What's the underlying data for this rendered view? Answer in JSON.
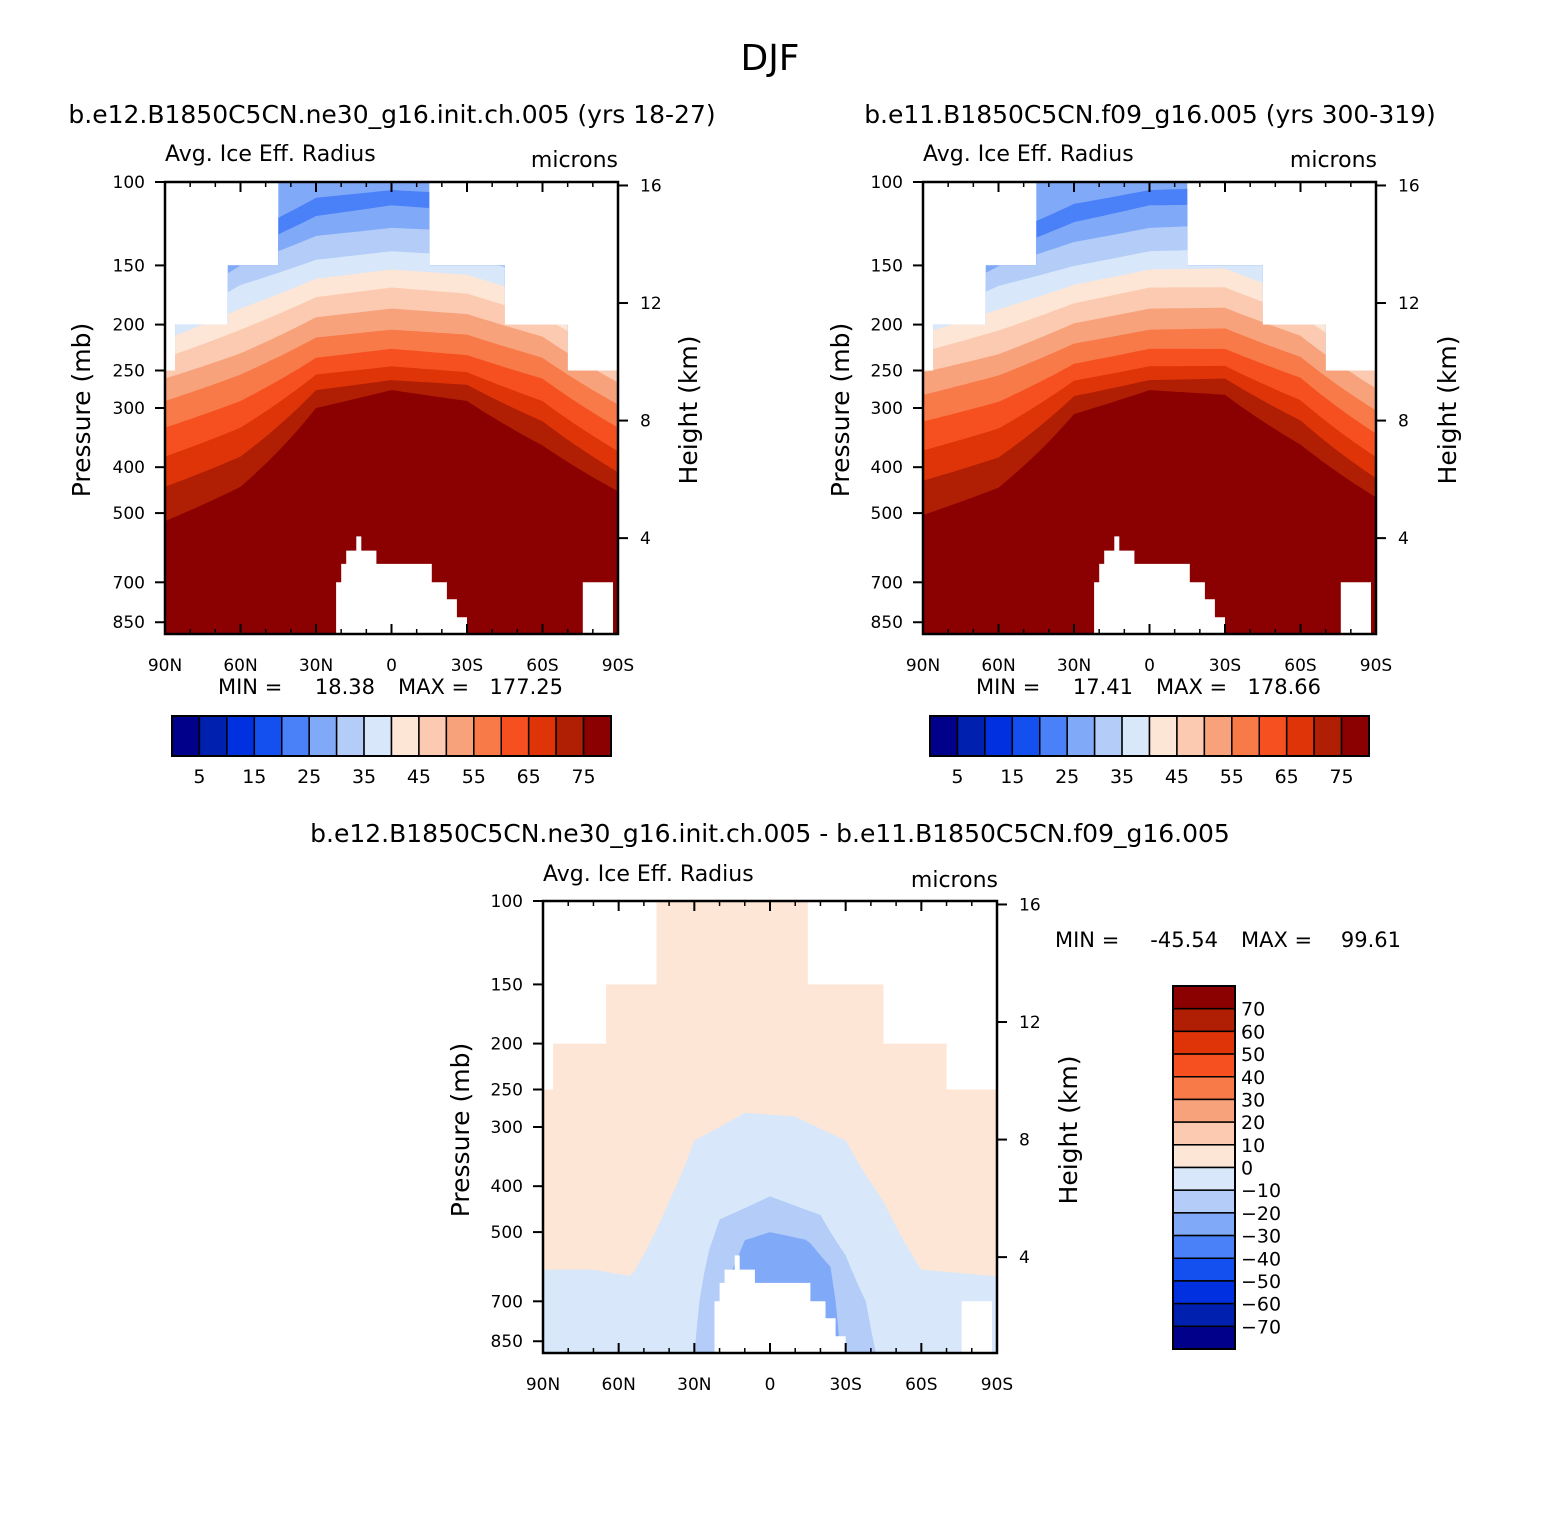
{
  "page": {
    "title": "DJF"
  },
  "colors": {
    "abs_levels": [
      "#00008b",
      "#0020b0",
      "#0030e0",
      "#1450f0",
      "#4a80f8",
      "#80aaf8",
      "#b4ccf8",
      "#d8e8fa",
      "#fde6d6",
      "#fbcab0",
      "#f8a27c",
      "#f77a48",
      "#f75020",
      "#de3408",
      "#b01e04",
      "#8b0000"
    ],
    "diff_levels": [
      "#8b0000",
      "#b01e04",
      "#de3408",
      "#f75020",
      "#f77a48",
      "#f8a27c",
      "#fbcab0",
      "#fde6d6",
      "#d8e8fa",
      "#b4ccf8",
      "#80aaf8",
      "#4a80f8",
      "#1450f0",
      "#0030e0",
      "#0020b0",
      "#00008b"
    ]
  },
  "chart_data": [
    {
      "id": "panel1",
      "type": "heatmap",
      "title": "b.e12.B1850C5CN.ne30_g16.init.ch.005 (yrs 18-27)",
      "variable": "Avg. Ice Eff. Radius",
      "units": "microns",
      "ylabel": "Pressure (mb)",
      "ylabel_right": "Height (km)",
      "x_ticks": [
        "90N",
        "60N",
        "30N",
        "0",
        "30S",
        "60S",
        "90S"
      ],
      "y_ticks": [
        "100",
        "150",
        "200",
        "250",
        "300",
        "400",
        "500",
        "700",
        "850"
      ],
      "y_right_ticks": [
        "16",
        "12",
        "8",
        "4"
      ],
      "stats": {
        "min_label": "MIN =",
        "min": "18.38",
        "max_label": "MAX =",
        "max": "177.25"
      },
      "colorbar_labels": [
        "5",
        "15",
        "25",
        "35",
        "45",
        "55",
        "65",
        "75"
      ],
      "variant": "a"
    },
    {
      "id": "panel2",
      "type": "heatmap",
      "title": "b.e11.B1850C5CN.f09_g16.005 (yrs 300-319)",
      "variable": "Avg. Ice Eff. Radius",
      "units": "microns",
      "ylabel": "Pressure (mb)",
      "ylabel_right": "Height (km)",
      "x_ticks": [
        "90N",
        "60N",
        "30N",
        "0",
        "30S",
        "60S",
        "90S"
      ],
      "y_ticks": [
        "100",
        "150",
        "200",
        "250",
        "300",
        "400",
        "500",
        "700",
        "850"
      ],
      "y_right_ticks": [
        "16",
        "12",
        "8",
        "4"
      ],
      "stats": {
        "min_label": "MIN =",
        "min": "17.41",
        "max_label": "MAX =",
        "max": "178.66"
      },
      "colorbar_labels": [
        "5",
        "15",
        "25",
        "35",
        "45",
        "55",
        "65",
        "75"
      ],
      "variant": "b"
    },
    {
      "id": "panel3",
      "type": "heatmap",
      "title": "b.e12.B1850C5CN.ne30_g16.init.ch.005 - b.e11.B1850C5CN.f09_g16.005",
      "variable": "Avg. Ice Eff. Radius",
      "units": "microns",
      "ylabel": "Pressure (mb)",
      "ylabel_right": "Height (km)",
      "x_ticks": [
        "90N",
        "60N",
        "30N",
        "0",
        "30S",
        "60S",
        "90S"
      ],
      "y_ticks": [
        "100",
        "150",
        "200",
        "250",
        "300",
        "400",
        "500",
        "700",
        "850"
      ],
      "y_right_ticks": [
        "16",
        "12",
        "8",
        "4"
      ],
      "stats": {
        "min_label": "MIN =",
        "min": "-45.54",
        "max_label": "MAX =",
        "max": "99.61"
      },
      "colorbar_labels": [
        "70",
        "60",
        "50",
        "40",
        "30",
        "20",
        "10",
        "0",
        "-10",
        "-20",
        "-30",
        "-40",
        "-50",
        "-60",
        "-70"
      ],
      "variant": "diff"
    }
  ]
}
